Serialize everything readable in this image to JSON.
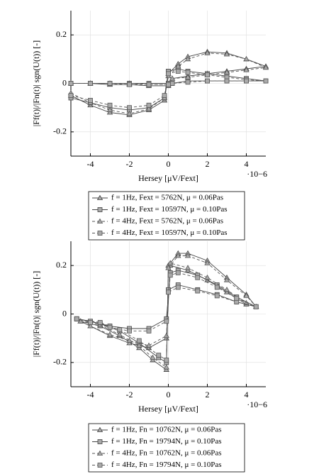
{
  "chart_data": [
    {
      "type": "line",
      "x_label": "Hersey [μV/Fext]",
      "y_label": "|Ff(t)|/|Fn(t)| sgn(U(t)) [-]",
      "x_multiplier": "·10−6",
      "xlim": [
        -5,
        5
      ],
      "ylim": [
        -0.3,
        0.3
      ],
      "xticks": [
        -4,
        -2,
        0,
        2,
        4
      ],
      "yticks": [
        -0.2,
        0,
        0.2
      ],
      "grid": true,
      "series": [
        {
          "name": "f = 1Hz, Fext = 5762N, μ = 0.06Pas",
          "color": "#444444",
          "marker": "triangle",
          "dash": false,
          "x": [
            -5,
            -4,
            -3,
            -2,
            -1,
            -0.2,
            0,
            0.5,
            1,
            2,
            3,
            4,
            5,
            4,
            3,
            2,
            1,
            0.2,
            0,
            -1,
            -2,
            -3,
            -4,
            -5
          ],
          "values": [
            -0.05,
            -0.09,
            -0.12,
            -0.13,
            -0.11,
            -0.07,
            0.04,
            0.08,
            0.11,
            0.13,
            0.125,
            0.1,
            0.07,
            0.06,
            0.05,
            0.04,
            0.03,
            0.02,
            -0.01,
            -0.01,
            -0.005,
            -0.005,
            0,
            0
          ]
        },
        {
          "name": "f = 1Hz, Fext = 10597N, μ = 0.10Pas",
          "color": "#444444",
          "marker": "square",
          "dash": false,
          "x": [
            -5,
            -4,
            -3,
            -2,
            -1,
            -0.2,
            0,
            0.5,
            1,
            2,
            3,
            4,
            5,
            4,
            3,
            2,
            1,
            0.2,
            0,
            -1,
            -2,
            -3,
            -4,
            -5
          ],
          "values": [
            -0.06,
            -0.08,
            -0.1,
            -0.11,
            -0.1,
            -0.06,
            0.05,
            0.06,
            0.05,
            0.04,
            0.03,
            0.02,
            0.01,
            0.01,
            0.01,
            0.01,
            0.01,
            0.0,
            0,
            0,
            0,
            0,
            0,
            0
          ]
        },
        {
          "name": "f = 4Hz, Fext = 5762N, μ = 0.06Pas",
          "color": "#555555",
          "marker": "triangle",
          "dash": true,
          "x": [
            -5,
            -4,
            -3,
            -2,
            -1,
            -0.2,
            0,
            0.5,
            1,
            2,
            3,
            4,
            5,
            4,
            3,
            2,
            1,
            0.2,
            0,
            -1,
            -2,
            -3,
            -4,
            -5
          ],
          "values": [
            -0.04,
            -0.08,
            -0.11,
            -0.125,
            -0.105,
            -0.06,
            0.03,
            0.07,
            0.1,
            0.125,
            0.12,
            0.1,
            0.065,
            0.055,
            0.045,
            0.035,
            0.025,
            0.02,
            -0.005,
            -0.005,
            0,
            0,
            0,
            0
          ]
        },
        {
          "name": "f = 4Hz, Fext = 10597N, μ = 0.10Pas",
          "color": "#555555",
          "marker": "square",
          "dash": true,
          "x": [
            -5,
            -4,
            -3,
            -2,
            -1,
            -0.2,
            0,
            0.5,
            1,
            2,
            3,
            4,
            5,
            4,
            3,
            2,
            1,
            0.2,
            0,
            -1,
            -2,
            -3,
            -4,
            -5
          ],
          "values": [
            -0.05,
            -0.07,
            -0.09,
            -0.1,
            -0.09,
            -0.05,
            0.04,
            0.05,
            0.045,
            0.035,
            0.025,
            0.015,
            0.01,
            0.01,
            0.01,
            0.01,
            0.005,
            0.0,
            -0.005,
            -0.005,
            -0.005,
            0,
            0,
            0
          ]
        }
      ]
    },
    {
      "type": "line",
      "x_label": "Hersey [μV/Fext]",
      "y_label": "|Ff(t)|/|Fn(t)| sgn(U(t)) [-]",
      "x_multiplier": "·10−6",
      "xlim": [
        -5,
        5
      ],
      "ylim": [
        -0.3,
        0.3
      ],
      "xticks": [
        -4,
        -2,
        0,
        2,
        4
      ],
      "yticks": [
        -0.2,
        0,
        0.2
      ],
      "grid": true,
      "series": [
        {
          "name": "f = 1Hz, Fn = 10762N, μ = 0.06Pas",
          "color": "#444444",
          "marker": "triangle",
          "dash": false,
          "x": [
            -4.5,
            -3.5,
            -2.5,
            -1.5,
            -0.8,
            -0.1,
            0,
            0.5,
            1,
            2,
            3,
            4,
            4.5,
            4,
            3,
            2,
            1,
            0.1,
            -0.1,
            -1,
            -2,
            -3,
            -4,
            -4.5
          ],
          "values": [
            -0.03,
            -0.05,
            -0.09,
            -0.14,
            -0.19,
            -0.23,
            0.2,
            0.25,
            0.25,
            0.22,
            0.15,
            0.08,
            0.03,
            0.04,
            0.09,
            0.14,
            0.18,
            0.2,
            -0.1,
            -0.14,
            -0.12,
            -0.09,
            -0.05,
            -0.03
          ]
        },
        {
          "name": "f = 1Hz, Fn = 19794N, μ = 0.10Pas",
          "color": "#444444",
          "marker": "square",
          "dash": false,
          "x": [
            -4.7,
            -3.5,
            -2.5,
            -1.5,
            -0.5,
            -0.1,
            0,
            0.5,
            1.5,
            2.5,
            3.5,
            4.5,
            3.5,
            2.5,
            1.5,
            0.5,
            0.1,
            -0.1,
            -1,
            -2,
            -3,
            -4,
            -4.7
          ],
          "values": [
            -0.02,
            -0.04,
            -0.07,
            -0.12,
            -0.18,
            -0.2,
            0.1,
            0.12,
            0.1,
            0.08,
            0.05,
            0.03,
            0.07,
            0.12,
            0.16,
            0.18,
            0.17,
            -0.02,
            -0.06,
            -0.06,
            -0.05,
            -0.03,
            -0.02
          ]
        },
        {
          "name": "f = 4Hz, Fn = 10762N, μ = 0.06Pas",
          "color": "#555555",
          "marker": "triangle",
          "dash": true,
          "x": [
            -4.5,
            -3.5,
            -2.5,
            -1.5,
            -0.8,
            -0.1,
            0,
            0.5,
            1,
            2,
            3,
            4,
            4.5,
            4,
            3,
            2,
            1,
            0.1,
            -0.1,
            -1,
            -2,
            -3,
            -4,
            -4.5
          ],
          "values": [
            -0.03,
            -0.045,
            -0.085,
            -0.13,
            -0.18,
            -0.22,
            0.19,
            0.24,
            0.24,
            0.21,
            0.14,
            0.075,
            0.03,
            0.045,
            0.1,
            0.15,
            0.19,
            0.21,
            -0.09,
            -0.13,
            -0.11,
            -0.085,
            -0.05,
            -0.03
          ]
        },
        {
          "name": "f = 4Hz, Fn = 19794N, μ = 0.10Pas",
          "color": "#555555",
          "marker": "square",
          "dash": true,
          "x": [
            -4.7,
            -3.5,
            -2.5,
            -1.5,
            -0.5,
            -0.1,
            0,
            0.5,
            1.5,
            2.5,
            3.5,
            4.5,
            3.5,
            2.5,
            1.5,
            0.5,
            0.1,
            -0.1,
            -1,
            -2,
            -3,
            -4,
            -4.7
          ],
          "values": [
            -0.02,
            -0.035,
            -0.065,
            -0.11,
            -0.17,
            -0.19,
            0.09,
            0.11,
            0.095,
            0.075,
            0.05,
            0.03,
            0.065,
            0.11,
            0.15,
            0.17,
            0.16,
            -0.03,
            -0.07,
            -0.07,
            -0.055,
            -0.035,
            -0.02
          ]
        }
      ]
    }
  ]
}
